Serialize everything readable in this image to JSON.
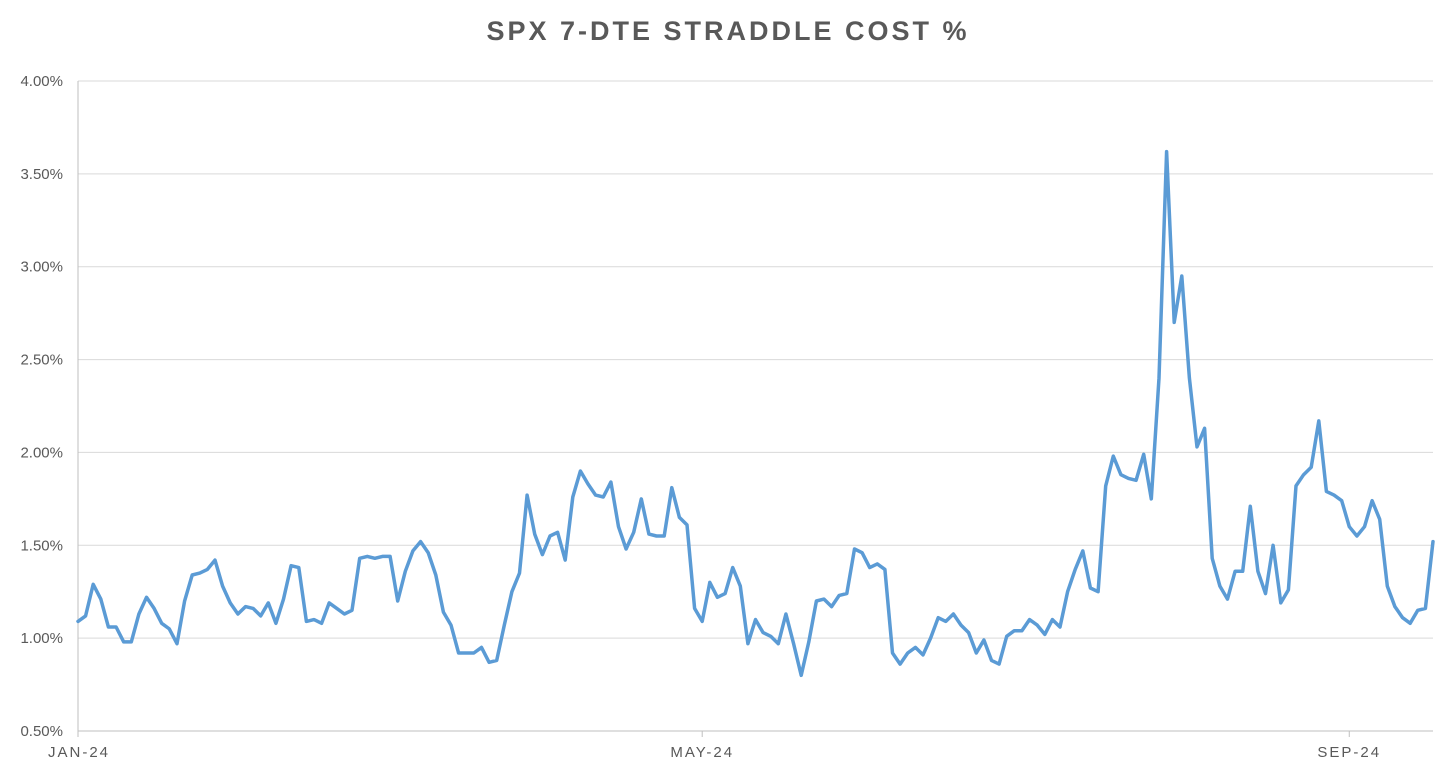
{
  "chart_data": {
    "type": "line",
    "title": "SPX 7-DTE STRADDLE COST %",
    "xlabel": "",
    "ylabel": "",
    "ylim": [
      0.5,
      4.0
    ],
    "y_ticks": [
      {
        "value": 0.5,
        "label": "0.50%"
      },
      {
        "value": 1.0,
        "label": "1.00%"
      },
      {
        "value": 1.5,
        "label": "1.50%"
      },
      {
        "value": 2.0,
        "label": "2.00%"
      },
      {
        "value": 2.5,
        "label": "2.50%"
      },
      {
        "value": 3.0,
        "label": "3.00%"
      },
      {
        "value": 3.5,
        "label": "3.50%"
      },
      {
        "value": 4.0,
        "label": "4.00%"
      }
    ],
    "x_ticks": [
      {
        "index": 0,
        "label": "JAN-24"
      },
      {
        "index": 82,
        "label": "MAY-24"
      },
      {
        "index": 167,
        "label": "SEP-24"
      }
    ],
    "grid": true,
    "line_color": "#5B9BD5",
    "series": [
      {
        "name": "SPX 7-DTE Straddle Cost %",
        "values": [
          1.09,
          1.12,
          1.29,
          1.21,
          1.06,
          1.06,
          0.98,
          0.98,
          1.13,
          1.22,
          1.16,
          1.08,
          1.05,
          0.97,
          1.2,
          1.34,
          1.35,
          1.37,
          1.42,
          1.28,
          1.19,
          1.13,
          1.17,
          1.16,
          1.12,
          1.19,
          1.08,
          1.21,
          1.39,
          1.38,
          1.09,
          1.1,
          1.08,
          1.19,
          1.16,
          1.13,
          1.15,
          1.43,
          1.44,
          1.43,
          1.44,
          1.44,
          1.2,
          1.36,
          1.47,
          1.52,
          1.46,
          1.34,
          1.14,
          1.07,
          0.92,
          0.92,
          0.92,
          0.95,
          0.87,
          0.88,
          1.07,
          1.25,
          1.35,
          1.77,
          1.56,
          1.45,
          1.55,
          1.57,
          1.42,
          1.76,
          1.9,
          1.83,
          1.77,
          1.76,
          1.84,
          1.6,
          1.48,
          1.57,
          1.75,
          1.56,
          1.55,
          1.55,
          1.81,
          1.65,
          1.61,
          1.16,
          1.09,
          1.3,
          1.22,
          1.24,
          1.38,
          1.28,
          0.97,
          1.1,
          1.03,
          1.01,
          0.97,
          1.13,
          0.97,
          0.8,
          0.98,
          1.2,
          1.21,
          1.17,
          1.23,
          1.24,
          1.48,
          1.46,
          1.38,
          1.4,
          1.37,
          0.92,
          0.86,
          0.92,
          0.95,
          0.91,
          1.0,
          1.11,
          1.09,
          1.13,
          1.07,
          1.03,
          0.92,
          0.99,
          0.88,
          0.86,
          1.01,
          1.04,
          1.04,
          1.1,
          1.07,
          1.02,
          1.1,
          1.06,
          1.25,
          1.37,
          1.47,
          1.27,
          1.25,
          1.82,
          1.98,
          1.88,
          1.86,
          1.85,
          1.99,
          1.75,
          2.4,
          3.62,
          2.7,
          2.95,
          2.4,
          2.03,
          2.13,
          1.43,
          1.28,
          1.21,
          1.36,
          1.36,
          1.71,
          1.36,
          1.24,
          1.5,
          1.19,
          1.26,
          1.82,
          1.88,
          1.92,
          2.17,
          1.79,
          1.77,
          1.74,
          1.6,
          1.55,
          1.6,
          1.74,
          1.64,
          1.28,
          1.17,
          1.11,
          1.08,
          1.15,
          1.16,
          1.52
        ]
      }
    ]
  }
}
